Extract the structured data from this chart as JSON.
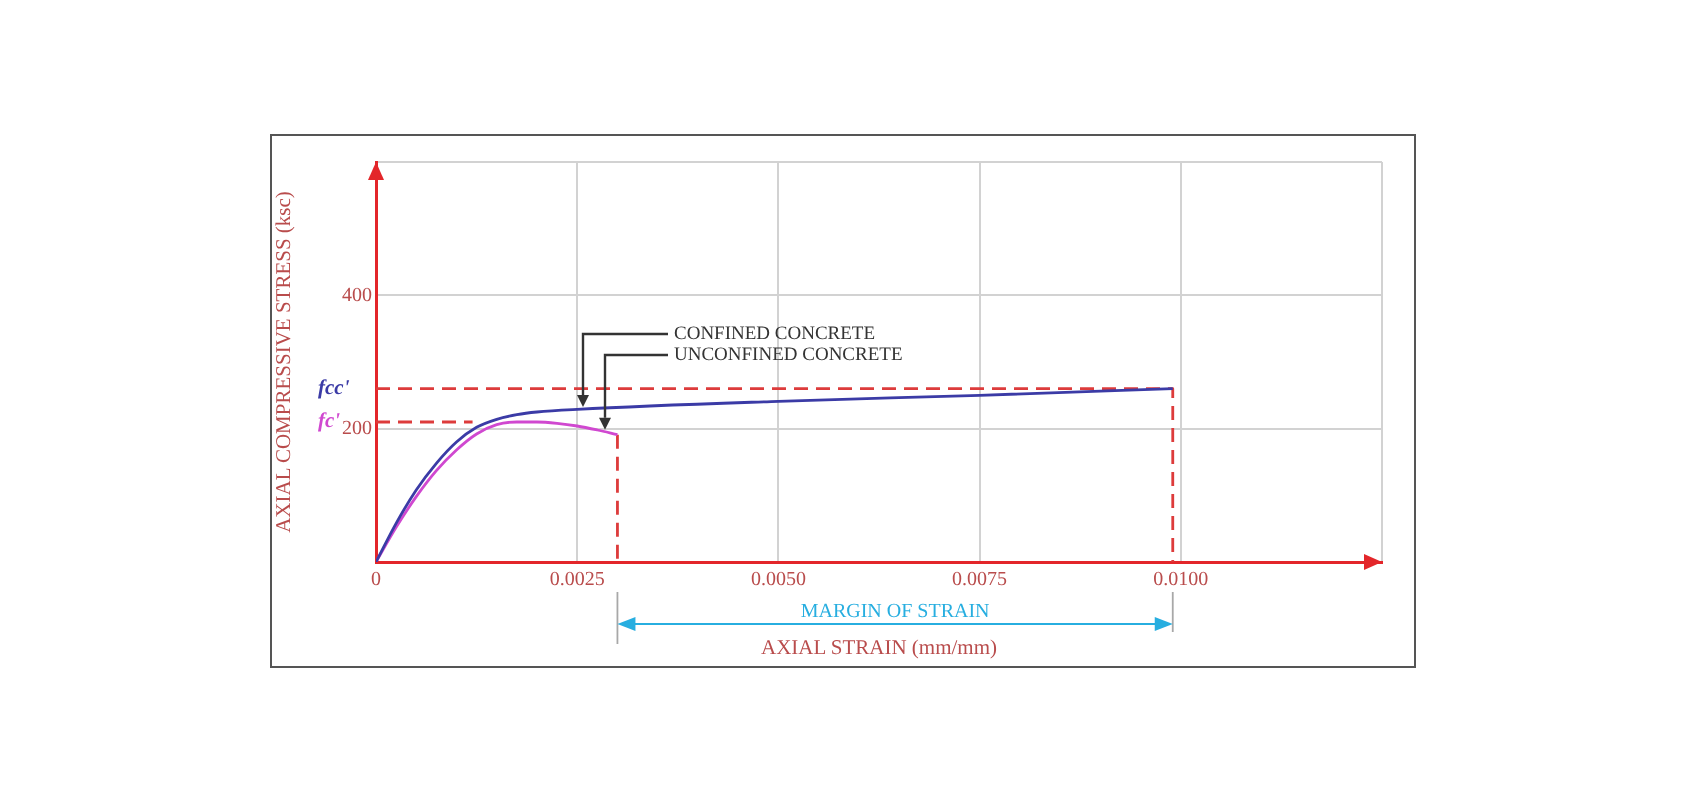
{
  "chart_data": {
    "type": "line",
    "xlabel": "AXIAL STRAIN (mm/mm)",
    "ylabel": "AXIAL COMPRESSIVE STRESS (ksc)",
    "xlim": [
      0,
      0.0125
    ],
    "xticks": [
      0,
      0.0025,
      {
        "value": 0.005,
        "label": "0.0050"
      },
      0.0075,
      {
        "value": 0.01,
        "label": "0.0100"
      },
      {
        "value": 0.0125,
        "label": null
      }
    ],
    "ylim": [
      0,
      600
    ],
    "yticks": [
      200,
      400,
      {
        "value": 600,
        "label": null
      }
    ],
    "grid": true,
    "series": [
      {
        "name": "CONFINED CONCRETE",
        "color": "#3b3ba6",
        "x": [
          0,
          0.00025,
          0.0005,
          0.00075,
          0.001,
          0.00125,
          0.0015,
          0.00175,
          0.002,
          0.0025,
          0.005,
          0.0075,
          0.0099
        ],
        "values": [
          0,
          58,
          108,
          148,
          180,
          202,
          214,
          221,
          225,
          229,
          241,
          250,
          260
        ]
      },
      {
        "name": "UNCONFINED CONCRETE",
        "color": "#d048d0",
        "x": [
          0,
          0.00025,
          0.0005,
          0.00075,
          0.001,
          0.00125,
          0.0015,
          0.00175,
          0.002,
          0.00225,
          0.0025,
          0.00275,
          0.003
        ],
        "values": [
          0,
          52,
          98,
          137,
          168,
          192,
          206,
          210,
          210,
          208,
          204,
          198,
          191
        ]
      },
      {
        "color": "#dd3b3b",
        "line_style": "dashed",
        "x": [
          0,
          0.0099,
          0.0099
        ],
        "values": [
          260,
          260,
          0
        ]
      },
      {
        "color": "#dd3b3b",
        "line_style": "dashed",
        "x": [
          0,
          0.0012
        ],
        "values": [
          210,
          210
        ]
      },
      {
        "color": "#dd3b3b",
        "line_style": "dashed",
        "x": [
          0.003,
          0.003
        ],
        "values": [
          191,
          0
        ]
      }
    ],
    "annotations": [
      "MARGIN OF STRAIN",
      {
        "text": "fcc'",
        "x": 0,
        "y": 260
      },
      {
        "text": "fc'",
        "x": 0,
        "y": 210
      }
    ]
  }
}
